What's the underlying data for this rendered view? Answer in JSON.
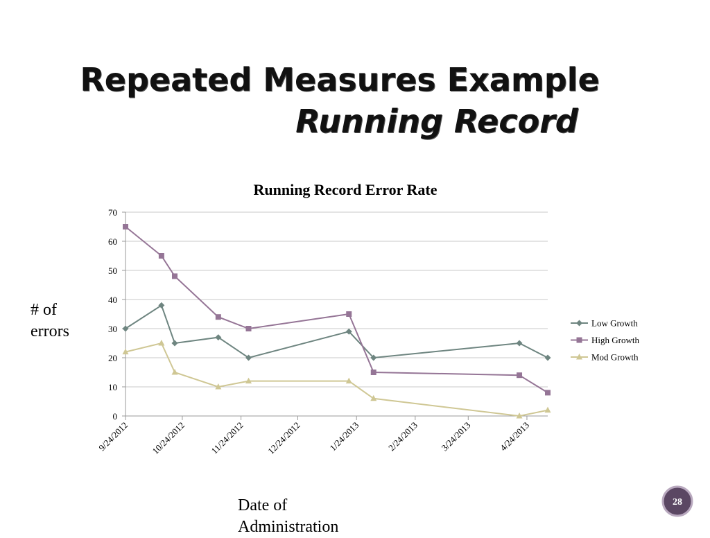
{
  "slide": {
    "title": "Repeated Measures Example",
    "subtitle": "Running Record",
    "page_number": "28"
  },
  "chart_data": {
    "type": "line",
    "title": "Running Record Error Rate",
    "y_label": "# of errors",
    "x_label": "Date of Administration",
    "x": [
      "2012-09-24",
      "2012-10-13",
      "2012-10-20",
      "2012-11-12",
      "2012-11-28",
      "2013-01-20",
      "2013-02-02",
      "2013-04-20",
      "2013-05-05"
    ],
    "series": [
      {
        "name": "Low Growth",
        "color": "#6e8580",
        "marker": "diamond",
        "values": [
          30,
          38,
          25,
          27,
          20,
          29,
          20,
          25,
          20
        ]
      },
      {
        "name": "High Growth",
        "color": "#957596",
        "marker": "square",
        "values": [
          65,
          55,
          48,
          34,
          30,
          35,
          15,
          14,
          8
        ]
      },
      {
        "name": "Mod Growth",
        "color": "#cfc794",
        "marker": "triangle",
        "values": [
          22,
          25,
          15,
          10,
          12,
          12,
          6,
          0,
          2
        ]
      }
    ],
    "xlim": [
      "2012-09-24",
      "2013-05-05"
    ],
    "xticks": [
      {
        "value": "2012-09-24",
        "label": "9/24/2012"
      },
      {
        "value": "2012-10-24",
        "label": "10/24/2012"
      },
      {
        "value": "2012-11-24",
        "label": "11/24/2012"
      },
      {
        "value": "2012-12-24",
        "label": "12/24/2012"
      },
      {
        "value": "2013-01-24",
        "label": "1/24/2013"
      },
      {
        "value": "2013-02-24",
        "label": "2/24/2013"
      },
      {
        "value": "2013-03-24",
        "label": "3/24/2013"
      },
      {
        "value": "2013-04-24",
        "label": "4/24/2013"
      }
    ],
    "ylim": [
      0,
      70
    ],
    "yticks": [
      0,
      10,
      20,
      30,
      40,
      50,
      60,
      70
    ],
    "grid": true,
    "legend": "right"
  }
}
